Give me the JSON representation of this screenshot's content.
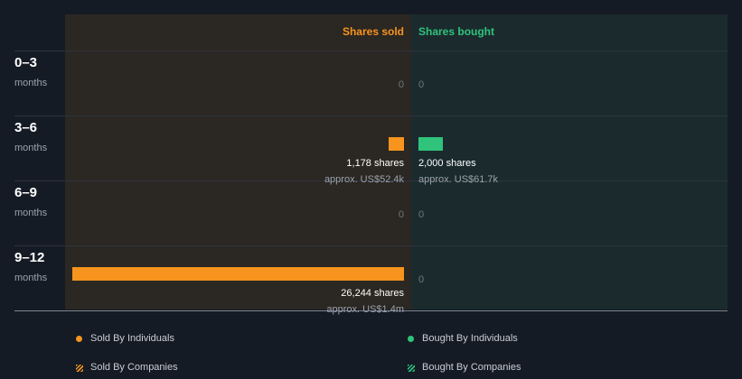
{
  "chart_data": {
    "type": "bar",
    "title": "",
    "columns": [
      "Shares sold",
      "Shares bought"
    ],
    "periods": [
      {
        "label": "0–3",
        "unit": "months",
        "sold": {
          "shares": 0,
          "shares_label": "0",
          "approx_label": ""
        },
        "bought": {
          "shares": 0,
          "shares_label": "0",
          "approx_label": ""
        }
      },
      {
        "label": "3–6",
        "unit": "months",
        "sold": {
          "shares": 1178,
          "shares_label": "1,178 shares",
          "approx_label": "approx. US$52.4k"
        },
        "bought": {
          "shares": 2000,
          "shares_label": "2,000 shares",
          "approx_label": "approx. US$61.7k"
        }
      },
      {
        "label": "6–9",
        "unit": "months",
        "sold": {
          "shares": 0,
          "shares_label": "0",
          "approx_label": ""
        },
        "bought": {
          "shares": 0,
          "shares_label": "0",
          "approx_label": ""
        }
      },
      {
        "label": "9–12",
        "unit": "months",
        "sold": {
          "shares": 26244,
          "shares_label": "26,244 shares",
          "approx_label": "approx. US$1.4m"
        },
        "bought": {
          "shares": 0,
          "shares_label": "0",
          "approx_label": ""
        }
      }
    ],
    "max_shares": 26244,
    "colors": {
      "sold": "#f7941e",
      "bought": "#2fc37c"
    },
    "legend": [
      {
        "label": "Sold By Individuals",
        "color": "#f7941e",
        "style": "solid"
      },
      {
        "label": "Bought By Individuals",
        "color": "#2fc37c",
        "style": "solid"
      },
      {
        "label": "Sold By Companies",
        "color": "#f7941e",
        "style": "hatched"
      },
      {
        "label": "Bought By Companies",
        "color": "#2fc37c",
        "style": "hatched"
      }
    ]
  }
}
